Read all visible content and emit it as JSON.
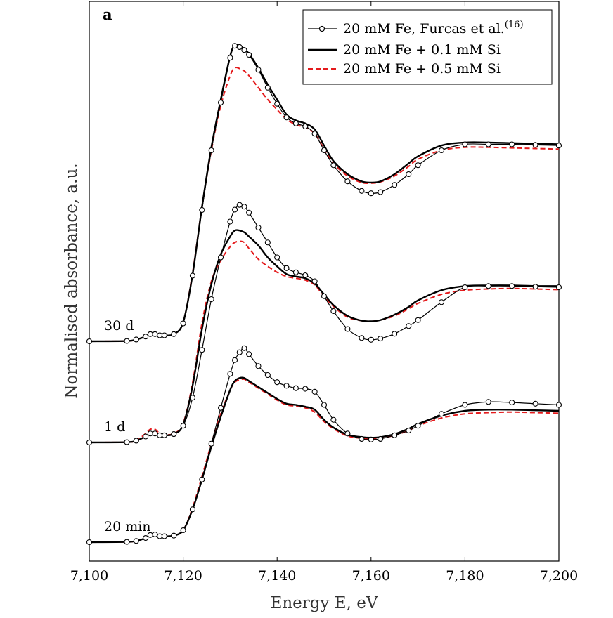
{
  "chart_data": {
    "type": "line",
    "panel_label": "a",
    "xlabel": "Energy E, eV",
    "ylabel": "Normalised absorbance, a.u.",
    "xlim": [
      7100,
      7200
    ],
    "x_ticks": [
      7100,
      7120,
      7140,
      7160,
      7180,
      7200
    ],
    "x_tick_labels": [
      "7,100",
      "7,120",
      "7,140",
      "7,160",
      "7,180",
      "7,200"
    ],
    "grid": false,
    "legend_position": "top-right",
    "legend": [
      {
        "label": "20 mM Fe, Furcas et al.",
        "superscript": "(16)",
        "style": "thin-circle-markers",
        "color": "#000000"
      },
      {
        "label": "20 mM Fe + 0.1 mM Si",
        "style": "thick-solid",
        "color": "#000000"
      },
      {
        "label": "20 mM Fe + 0.5 mM Si",
        "style": "dashed",
        "color": "#e41a1c"
      }
    ],
    "groups": [
      {
        "label": "20 min",
        "baseline": 0,
        "x": [
          7100,
          7108,
          7110,
          7112,
          7113,
          7114,
          7115,
          7116,
          7118,
          7120,
          7122,
          7124,
          7126,
          7128,
          7130,
          7131,
          7132,
          7133,
          7134,
          7136,
          7138,
          7140,
          7142,
          7144,
          7146,
          7148,
          7150,
          7152,
          7155,
          7158,
          7160,
          7162,
          7165,
          7168,
          7170,
          7175,
          7180,
          7185,
          7190,
          7195,
          7200
        ],
        "series": [
          {
            "name": "20 mM Fe, Furcas et al.",
            "values": [
              0,
              0.005,
              0.02,
              0.07,
              0.12,
              0.13,
              0.1,
              0.1,
              0.11,
              0.2,
              0.55,
              1.05,
              1.65,
              2.25,
              2.82,
              3.05,
              3.18,
              3.25,
              3.15,
              2.95,
              2.8,
              2.68,
              2.62,
              2.58,
              2.57,
              2.52,
              2.3,
              2.05,
              1.82,
              1.73,
              1.72,
              1.73,
              1.79,
              1.87,
              1.95,
              2.15,
              2.3,
              2.35,
              2.34,
              2.32,
              2.3
            ]
          },
          {
            "name": "20 mM Fe + 0.1 mM Si",
            "values": [
              0,
              0.005,
              0.02,
              0.07,
              0.12,
              0.14,
              0.1,
              0.1,
              0.11,
              0.2,
              0.55,
              1.05,
              1.6,
              2.1,
              2.55,
              2.7,
              2.75,
              2.75,
              2.7,
              2.6,
              2.5,
              2.4,
              2.32,
              2.3,
              2.27,
              2.22,
              2.05,
              1.92,
              1.8,
              1.76,
              1.75,
              1.76,
              1.81,
              1.9,
              1.98,
              2.12,
              2.2,
              2.22,
              2.22,
              2.21,
              2.2
            ]
          },
          {
            "name": "20 mM Fe + 0.5 mM Si",
            "values": [
              0,
              0.005,
              0.02,
              0.07,
              0.12,
              0.14,
              0.1,
              0.1,
              0.11,
              0.2,
              0.58,
              1.1,
              1.65,
              2.15,
              2.55,
              2.68,
              2.72,
              2.73,
              2.68,
              2.58,
              2.48,
              2.38,
              2.3,
              2.28,
              2.25,
              2.18,
              2.02,
              1.9,
              1.78,
              1.74,
              1.73,
              1.74,
              1.79,
              1.87,
              1.95,
              2.08,
              2.15,
              2.17,
              2.18,
              2.17,
              2.16
            ]
          }
        ]
      },
      {
        "label": "1 d",
        "baseline": 1,
        "x": [
          7100,
          7108,
          7110,
          7112,
          7113,
          7114,
          7115,
          7116,
          7118,
          7120,
          7122,
          7124,
          7126,
          7128,
          7130,
          7131,
          7132,
          7133,
          7134,
          7136,
          7138,
          7140,
          7142,
          7144,
          7146,
          7148,
          7150,
          7152,
          7155,
          7158,
          7160,
          7162,
          7165,
          7168,
          7170,
          7175,
          7180,
          7185,
          7190,
          7195,
          7200
        ],
        "series": [
          {
            "name": "20 mM Fe, Furcas et al.",
            "values": [
              0,
              0.005,
              0.03,
              0.1,
              0.15,
              0.15,
              0.12,
              0.12,
              0.14,
              0.28,
              0.75,
              1.55,
              2.4,
              3.1,
              3.7,
              3.9,
              3.98,
              3.95,
              3.85,
              3.6,
              3.35,
              3.1,
              2.92,
              2.85,
              2.8,
              2.7,
              2.45,
              2.2,
              1.9,
              1.75,
              1.72,
              1.74,
              1.82,
              1.95,
              2.05,
              2.35,
              2.6,
              2.62,
              2.62,
              2.61,
              2.6
            ]
          },
          {
            "name": "20 mM Fe + 0.1 mM Si",
            "values": [
              0,
              0.005,
              0.03,
              0.1,
              0.15,
              0.16,
              0.12,
              0.12,
              0.14,
              0.3,
              0.95,
              1.9,
              2.65,
              3.15,
              3.45,
              3.55,
              3.55,
              3.52,
              3.45,
              3.3,
              3.1,
              2.95,
              2.82,
              2.78,
              2.75,
              2.66,
              2.48,
              2.3,
              2.12,
              2.04,
              2.03,
              2.05,
              2.14,
              2.27,
              2.38,
              2.55,
              2.62,
              2.63,
              2.63,
              2.62,
              2.62
            ]
          },
          {
            "name": "20 mM Fe + 0.5 mM Si",
            "values": [
              0,
              0.005,
              0.03,
              0.15,
              0.22,
              0.22,
              0.15,
              0.13,
              0.15,
              0.32,
              1.0,
              2.0,
              2.7,
              3.05,
              3.28,
              3.35,
              3.37,
              3.35,
              3.25,
              3.07,
              2.95,
              2.85,
              2.78,
              2.75,
              2.72,
              2.64,
              2.45,
              2.28,
              2.1,
              2.04,
              2.03,
              2.05,
              2.12,
              2.24,
              2.33,
              2.48,
              2.55,
              2.57,
              2.58,
              2.57,
              2.56
            ]
          }
        ]
      },
      {
        "label": "30 d",
        "baseline": 2,
        "x": [
          7100,
          7108,
          7110,
          7112,
          7113,
          7114,
          7115,
          7116,
          7118,
          7120,
          7122,
          7124,
          7126,
          7128,
          7130,
          7131,
          7132,
          7133,
          7134,
          7136,
          7138,
          7140,
          7142,
          7144,
          7146,
          7148,
          7150,
          7152,
          7155,
          7158,
          7160,
          7162,
          7165,
          7168,
          7170,
          7175,
          7180,
          7185,
          7190,
          7195,
          7200
        ],
        "series": [
          {
            "name": "20 mM Fe, Furcas et al.",
            "values": [
              0,
              0.005,
              0.03,
              0.08,
              0.12,
              0.12,
              0.1,
              0.1,
              0.12,
              0.3,
              1.1,
              2.2,
              3.2,
              4.0,
              4.75,
              4.95,
              4.93,
              4.88,
              4.8,
              4.55,
              4.25,
              3.98,
              3.75,
              3.65,
              3.6,
              3.48,
              3.2,
              2.95,
              2.68,
              2.52,
              2.48,
              2.5,
              2.62,
              2.8,
              2.95,
              3.2,
              3.3,
              3.3,
              3.3,
              3.29,
              3.28
            ]
          },
          {
            "name": "20 mM Fe + 0.1 mM Si",
            "values": [
              0,
              0.005,
              0.03,
              0.08,
              0.12,
              0.13,
              0.1,
              0.1,
              0.12,
              0.32,
              1.12,
              2.25,
              3.25,
              4.05,
              4.78,
              4.96,
              4.95,
              4.9,
              4.82,
              4.58,
              4.3,
              4.05,
              3.8,
              3.7,
              3.65,
              3.55,
              3.28,
              3.02,
              2.8,
              2.68,
              2.66,
              2.68,
              2.8,
              2.98,
              3.1,
              3.28,
              3.33,
              3.33,
              3.32,
              3.31,
              3.3
            ]
          },
          {
            "name": "20 mM Fe + 0.5 mM Si",
            "values": [
              0,
              0.005,
              0.03,
              0.08,
              0.12,
              0.13,
              0.1,
              0.1,
              0.12,
              0.32,
              1.15,
              2.25,
              3.2,
              3.95,
              4.45,
              4.58,
              4.57,
              4.53,
              4.45,
              4.25,
              4.05,
              3.88,
              3.72,
              3.63,
              3.58,
              3.48,
              3.22,
              2.98,
              2.77,
              2.66,
              2.65,
              2.67,
              2.77,
              2.93,
              3.05,
              3.2,
              3.25,
              3.25,
              3.24,
              3.23,
              3.22
            ]
          }
        ]
      }
    ]
  }
}
